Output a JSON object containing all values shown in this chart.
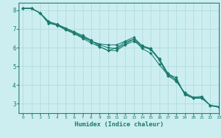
{
  "title": "",
  "xlabel": "Humidex (Indice chaleur)",
  "ylabel": "",
  "bg_color": "#cceef0",
  "grid_color": "#aad8d8",
  "line_color": "#1a7a6e",
  "marker": "D",
  "marker_size": 2.0,
  "xlim": [
    -0.5,
    23
  ],
  "ylim": [
    2.5,
    8.4
  ],
  "yticks": [
    3,
    4,
    5,
    6,
    7,
    8
  ],
  "xticks": [
    0,
    1,
    2,
    3,
    4,
    5,
    6,
    7,
    8,
    9,
    10,
    11,
    12,
    13,
    14,
    15,
    16,
    17,
    18,
    19,
    20,
    21,
    22,
    23
  ],
  "lines": [
    [
      8.1,
      8.1,
      7.85,
      7.35,
      7.25,
      7.0,
      6.8,
      6.6,
      6.35,
      6.2,
      6.15,
      6.15,
      6.35,
      6.55,
      6.1,
      5.95,
      5.4,
      4.6,
      4.4,
      3.5,
      3.3,
      3.3,
      2.92,
      2.85
    ],
    [
      8.1,
      8.1,
      7.85,
      7.4,
      7.25,
      7.05,
      6.85,
      6.65,
      6.4,
      6.05,
      5.85,
      6.0,
      6.3,
      6.45,
      5.95,
      5.7,
      5.1,
      4.55,
      4.3,
      3.5,
      3.3,
      3.3,
      2.92,
      2.85
    ],
    [
      8.1,
      8.1,
      7.85,
      7.3,
      7.2,
      6.95,
      6.75,
      6.5,
      6.25,
      6.05,
      5.85,
      5.85,
      6.15,
      6.35,
      6.05,
      5.9,
      5.35,
      4.5,
      4.2,
      3.6,
      3.35,
      3.4,
      2.9,
      2.82
    ],
    [
      8.1,
      8.1,
      7.85,
      7.4,
      7.2,
      7.0,
      6.8,
      6.55,
      6.35,
      6.15,
      6.0,
      5.95,
      6.2,
      6.45,
      6.1,
      5.95,
      5.4,
      4.65,
      4.25,
      3.55,
      3.3,
      3.35,
      2.92,
      2.82
    ]
  ]
}
